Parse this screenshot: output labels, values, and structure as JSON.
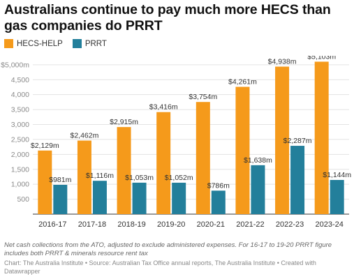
{
  "title": "Australians continue to pay much more HECS than gas companies do PRRT",
  "colors": {
    "hecs": "#f59a1b",
    "prrt": "#237f9b"
  },
  "chart_data": {
    "type": "bar",
    "categories": [
      "2016-17",
      "2017-18",
      "2018-19",
      "2019-20",
      "2020-21",
      "2021-22",
      "2022-23",
      "2023-24"
    ],
    "series": [
      {
        "name": "HECS-HELP",
        "values": [
          2129,
          2462,
          2915,
          3416,
          3754,
          4261,
          4938,
          5103
        ],
        "labels": [
          "$2,129m",
          "$2,462m",
          "$2,915m",
          "$3,416m",
          "$3,754m",
          "$4,261m",
          "$4,938m",
          "$5,103m"
        ]
      },
      {
        "name": "PRRT",
        "values": [
          981,
          1116,
          1053,
          1052,
          786,
          1638,
          2287,
          1144
        ],
        "labels": [
          "$981m",
          "$1,116m",
          "$1,053m",
          "$1,052m",
          "$786m",
          "$1,638m",
          "$2,287m",
          "$1,144m"
        ]
      }
    ],
    "yticks": [
      500,
      1000,
      1500,
      2000,
      2500,
      3000,
      3500,
      4000,
      4500,
      5000
    ],
    "ytick_labels": [
      "500",
      "1,000",
      "1,500",
      "2,000",
      "2,500",
      "3,000",
      "3,500",
      "4,000",
      "4,500",
      "$5,000m"
    ],
    "ylim": [
      0,
      5300
    ],
    "grid": true,
    "legend": "top-left"
  },
  "notes": "Net cash collections from the ATO, adjusted to exclude administered expenses. For 16-17 to 19-20 PRRT figure includes both PRRT & minerals resource rent tax",
  "source": "Chart: The Australia Institute • Source: Australian Tax Office annual reports, The Australia Institute • Created with Datawrapper"
}
